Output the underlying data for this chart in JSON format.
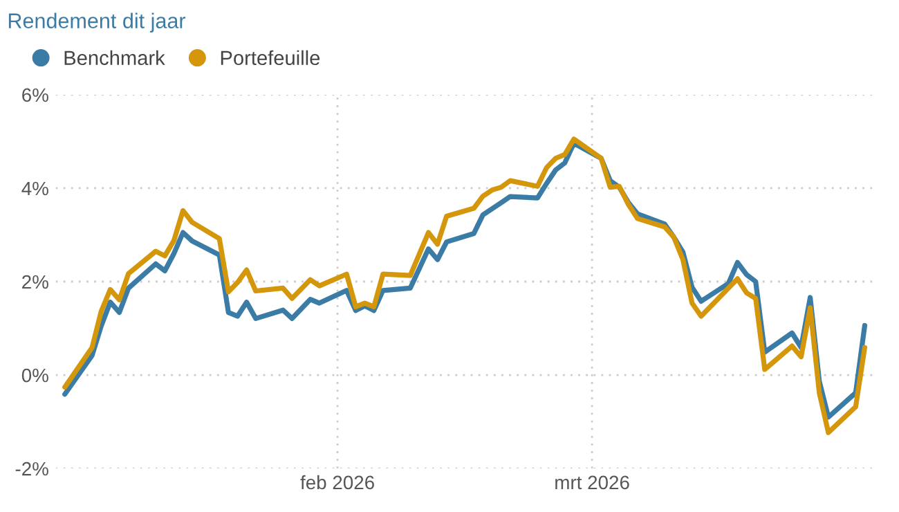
{
  "chart_data": {
    "type": "line",
    "title": "Rendement dit jaar",
    "xlim": [
      "2026-01-01",
      "2026-04-01"
    ],
    "xticks": [
      {
        "value": "2026-02-01",
        "label": "feb 2026"
      },
      {
        "value": "2026-03-01",
        "label": "mrt 2026"
      }
    ],
    "ylim": [
      -2,
      6
    ],
    "yticks": [
      {
        "value": -2,
        "label": "-2%"
      },
      {
        "value": 0,
        "label": "0%"
      },
      {
        "value": 2,
        "label": "2%"
      },
      {
        "value": 4,
        "label": "4%"
      },
      {
        "value": 6,
        "label": "6%"
      }
    ],
    "grid": true,
    "legend": "top left",
    "line_style": "solid",
    "series": [
      {
        "name": "Benchmark",
        "color": "#3a7ca5",
        "x": [
          "2026-01-02",
          "2026-01-05",
          "2026-01-06",
          "2026-01-07",
          "2026-01-08",
          "2026-01-09",
          "2026-01-12",
          "2026-01-13",
          "2026-01-14",
          "2026-01-15",
          "2026-01-16",
          "2026-01-19",
          "2026-01-20",
          "2026-01-21",
          "2026-01-22",
          "2026-01-23",
          "2026-01-26",
          "2026-01-27",
          "2026-01-29",
          "2026-01-30",
          "2026-02-02",
          "2026-02-03",
          "2026-02-04",
          "2026-02-05",
          "2026-02-06",
          "2026-02-09",
          "2026-02-11",
          "2026-02-12",
          "2026-02-13",
          "2026-02-16",
          "2026-02-17",
          "2026-02-19",
          "2026-02-20",
          "2026-02-23",
          "2026-02-24",
          "2026-02-25",
          "2026-02-26",
          "2026-02-27",
          "2026-03-02",
          "2026-03-03",
          "2026-03-04",
          "2026-03-05",
          "2026-03-06",
          "2026-03-09",
          "2026-03-10",
          "2026-03-11",
          "2026-03-12",
          "2026-03-13",
          "2026-03-16",
          "2026-03-17",
          "2026-03-18",
          "2026-03-19",
          "2026-03-20",
          "2026-03-23",
          "2026-03-24",
          "2026-03-25",
          "2026-03-26",
          "2026-03-27",
          "2026-03-30",
          "2026-03-31"
        ],
        "values": [
          -0.41,
          0.42,
          1.05,
          1.56,
          1.34,
          1.86,
          2.38,
          2.23,
          2.6,
          3.05,
          2.87,
          2.57,
          1.34,
          1.26,
          1.56,
          1.21,
          1.39,
          1.21,
          1.62,
          1.54,
          1.81,
          1.38,
          1.48,
          1.38,
          1.81,
          1.86,
          2.7,
          2.47,
          2.85,
          3.03,
          3.43,
          3.69,
          3.82,
          3.79,
          4.1,
          4.39,
          4.54,
          4.96,
          4.64,
          4.16,
          4.02,
          3.69,
          3.45,
          3.23,
          2.95,
          2.63,
          1.88,
          1.58,
          1.96,
          2.41,
          2.15,
          2.0,
          0.49,
          0.9,
          0.59,
          1.66,
          -0.13,
          -0.9,
          -0.38,
          1.06
        ]
      },
      {
        "name": "Portefeuille",
        "color": "#d4960a",
        "x": [
          "2026-01-02",
          "2026-01-05",
          "2026-01-06",
          "2026-01-07",
          "2026-01-08",
          "2026-01-09",
          "2026-01-12",
          "2026-01-13",
          "2026-01-14",
          "2026-01-15",
          "2026-01-16",
          "2026-01-19",
          "2026-01-20",
          "2026-01-21",
          "2026-01-22",
          "2026-01-23",
          "2026-01-26",
          "2026-01-27",
          "2026-01-29",
          "2026-01-30",
          "2026-02-02",
          "2026-02-03",
          "2026-02-04",
          "2026-02-05",
          "2026-02-06",
          "2026-02-09",
          "2026-02-11",
          "2026-02-12",
          "2026-02-13",
          "2026-02-16",
          "2026-02-17",
          "2026-02-18",
          "2026-02-19",
          "2026-02-20",
          "2026-02-23",
          "2026-02-24",
          "2026-02-25",
          "2026-02-26",
          "2026-02-27",
          "2026-03-02",
          "2026-03-03",
          "2026-03-04",
          "2026-03-05",
          "2026-03-06",
          "2026-03-09",
          "2026-03-10",
          "2026-03-11",
          "2026-03-12",
          "2026-03-13",
          "2026-03-17",
          "2026-03-18",
          "2026-03-19",
          "2026-03-20",
          "2026-03-23",
          "2026-03-24",
          "2026-03-25",
          "2026-03-26",
          "2026-03-27",
          "2026-03-30",
          "2026-03-31"
        ],
        "values": [
          -0.26,
          0.59,
          1.36,
          1.83,
          1.61,
          2.17,
          2.65,
          2.55,
          2.88,
          3.52,
          3.27,
          2.92,
          1.78,
          1.98,
          2.25,
          1.8,
          1.86,
          1.64,
          2.04,
          1.91,
          2.16,
          1.46,
          1.54,
          1.46,
          2.16,
          2.13,
          3.05,
          2.8,
          3.4,
          3.57,
          3.83,
          3.96,
          4.02,
          4.16,
          4.04,
          4.44,
          4.64,
          4.72,
          5.05,
          4.64,
          4.02,
          4.04,
          3.65,
          3.35,
          3.17,
          2.95,
          2.47,
          1.54,
          1.26,
          2.06,
          1.76,
          1.64,
          0.12,
          0.62,
          0.39,
          1.44,
          -0.38,
          -1.23,
          -0.68,
          0.59
        ]
      }
    ]
  }
}
